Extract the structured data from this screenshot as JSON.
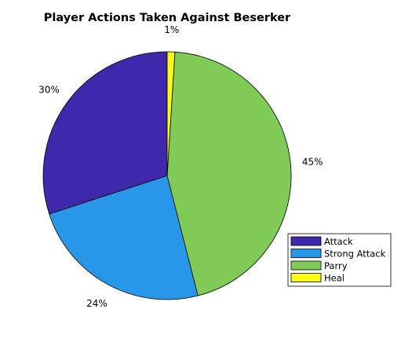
{
  "chart_data": {
    "type": "pie",
    "title": "Player Actions Taken Against Beserker",
    "categories": [
      "Attack",
      "Strong Attack",
      "Parry",
      "Heal"
    ],
    "values": [
      30,
      24,
      45,
      1
    ],
    "labels": [
      "30%",
      "24%",
      "45%",
      "1%"
    ],
    "colors": [
      "#3f28ab",
      "#2896e9",
      "#80cb58",
      "#f9fb14"
    ],
    "direction": "counterclockwise",
    "start_angle": "top",
    "legend": {
      "placement": "bottom-right",
      "entries": [
        "Attack",
        "Strong Attack",
        "Parry",
        "Heal"
      ]
    }
  }
}
